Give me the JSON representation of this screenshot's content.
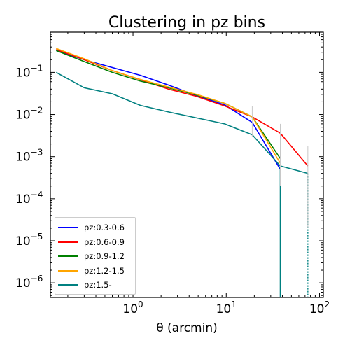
{
  "chart_data": {
    "type": "line",
    "title": "Clustering in pz bins",
    "xlabel": "θ (arcmin)",
    "ylabel": "",
    "xscale": "log",
    "yscale": "log",
    "xlim": [
      0.13,
      110
    ],
    "ylim": [
      4.5e-07,
      0.9
    ],
    "x_ticks": [
      {
        "value": 1,
        "base": "10",
        "exp": "0"
      },
      {
        "value": 10,
        "base": "10",
        "exp": "1"
      },
      {
        "value": 100,
        "base": "10",
        "exp": "2"
      }
    ],
    "y_ticks": [
      {
        "value": 1e-06,
        "base": "10",
        "exp": "−6"
      },
      {
        "value": 1e-05,
        "base": "10",
        "exp": "−5"
      },
      {
        "value": 0.0001,
        "base": "10",
        "exp": "−4"
      },
      {
        "value": 0.001,
        "base": "10",
        "exp": "−3"
      },
      {
        "value": 0.01,
        "base": "10",
        "exp": "−2"
      },
      {
        "value": 0.1,
        "base": "10",
        "exp": "−1"
      }
    ],
    "legend_position": "lower-left",
    "x": [
      0.15,
      0.3,
      0.6,
      1.2,
      2.4,
      4.8,
      9.6,
      19,
      38,
      75
    ],
    "series": [
      {
        "name": "pz:0.3-0.6",
        "color": "#0000ff",
        "values": [
          0.33,
          0.2,
          0.13,
          0.085,
          0.05,
          0.028,
          0.017,
          0.0065,
          0.0005,
          null
        ]
      },
      {
        "name": "pz:0.6-0.9",
        "color": "#ff0000",
        "values": [
          0.35,
          0.2,
          0.11,
          0.067,
          0.04,
          0.027,
          0.016,
          0.0088,
          0.0036,
          0.0006
        ]
      },
      {
        "name": "pz:0.9-1.2",
        "color": "#008000",
        "values": [
          0.33,
          0.18,
          0.1,
          0.062,
          0.043,
          0.029,
          0.0185,
          0.0088,
          0.0009,
          null
        ]
      },
      {
        "name": "pz:1.2-1.5",
        "color": "#ffa500",
        "values": [
          0.37,
          0.21,
          0.11,
          0.068,
          0.045,
          0.03,
          0.0185,
          0.0088,
          0.0007,
          null
        ]
      },
      {
        "name": "pz:1.5-",
        "color": "#008080",
        "values": [
          0.1,
          0.043,
          0.031,
          0.0165,
          0.0115,
          0.0083,
          0.006,
          0.0033,
          0.0006,
          0.0004
        ]
      }
    ]
  }
}
